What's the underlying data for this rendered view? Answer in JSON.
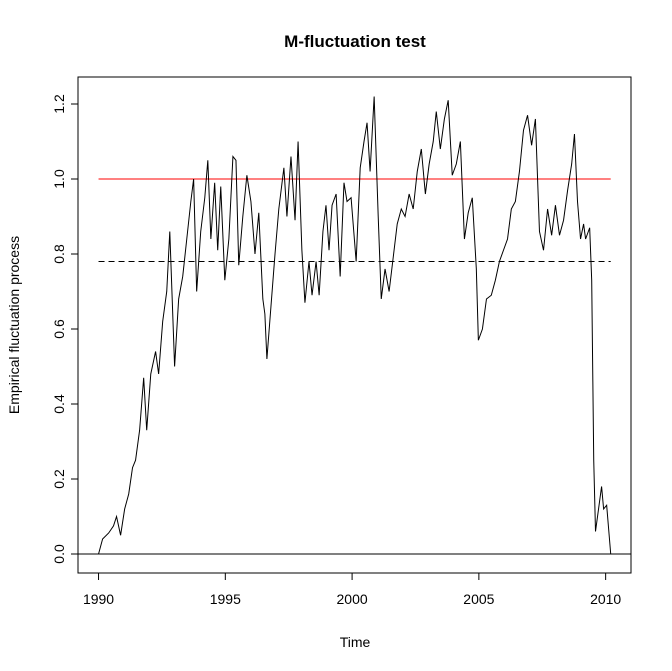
{
  "chart_data": {
    "type": "line",
    "title": "M-fluctuation test",
    "x_label": "Time",
    "y_label": "Empirical fluctuation process",
    "xlim": [
      1989.19,
      2011.0
    ],
    "ylim": [
      -0.0507,
      1.272
    ],
    "xticks": [
      1990,
      1995,
      2000,
      2005,
      2010
    ],
    "yticks": [
      {
        "value": 0,
        "label": "0.0"
      },
      0.2,
      0.4,
      0.6,
      0.8,
      {
        "value": 1,
        "label": "1.0"
      },
      1.2
    ],
    "hlines": [
      {
        "value": 1.0,
        "color": "#ff0000",
        "dash": false,
        "span": "data"
      },
      {
        "value": 0.78,
        "color": "#000000",
        "dash": true,
        "span": "data"
      },
      {
        "value": 0,
        "color": "#000000",
        "dash": false,
        "span": "full"
      }
    ],
    "series": [
      {
        "color": "#000000",
        "x": [
          1990.0,
          1990.16,
          1990.4,
          1990.59,
          1990.71,
          1990.87,
          1991.03,
          1991.19,
          1991.34,
          1991.46,
          1991.62,
          1991.78,
          1991.9,
          1992.06,
          1992.25,
          1992.37,
          1992.53,
          1992.69,
          1992.81,
          1993.0,
          1993.16,
          1993.32,
          1993.48,
          1993.64,
          1993.75,
          1993.87,
          1994.03,
          1994.19,
          1994.31,
          1994.43,
          1994.58,
          1994.7,
          1994.82,
          1994.98,
          1995.14,
          1995.3,
          1995.42,
          1995.53,
          1995.69,
          1995.85,
          1996.01,
          1996.17,
          1996.32,
          1996.48,
          1996.56,
          1996.64,
          1996.8,
          1996.96,
          1997.11,
          1997.31,
          1997.43,
          1997.59,
          1997.75,
          1997.87,
          1998.02,
          1998.14,
          1998.3,
          1998.42,
          1998.58,
          1998.7,
          1998.85,
          1998.97,
          1999.09,
          1999.21,
          1999.37,
          1999.53,
          1999.68,
          1999.8,
          1999.96,
          2000.16,
          2000.32,
          2000.47,
          2000.59,
          2000.71,
          2000.87,
          2001.03,
          2001.15,
          2001.3,
          2001.46,
          2001.62,
          2001.78,
          2001.94,
          2002.09,
          2002.25,
          2002.41,
          2002.57,
          2002.73,
          2002.89,
          2003.04,
          2003.2,
          2003.32,
          2003.48,
          2003.64,
          2003.79,
          2003.95,
          2004.11,
          2004.27,
          2004.43,
          2004.58,
          2004.74,
          2004.9,
          2004.98,
          2005.14,
          2005.3,
          2005.49,
          2005.65,
          2005.81,
          2005.97,
          2006.13,
          2006.28,
          2006.44,
          2006.6,
          2006.76,
          2006.92,
          2007.08,
          2007.23,
          2007.39,
          2007.55,
          2007.71,
          2007.87,
          2008.02,
          2008.18,
          2008.34,
          2008.5,
          2008.66,
          2008.77,
          2008.89,
          2009.01,
          2009.13,
          2009.21,
          2009.37,
          2009.45,
          2009.53,
          2009.6,
          2009.76,
          2009.84,
          2009.92,
          2010.04,
          2010.2
        ],
        "values": [
          0,
          0.04,
          0.056,
          0.075,
          0.1,
          0.05,
          0.12,
          0.16,
          0.23,
          0.25,
          0.33,
          0.47,
          0.33,
          0.48,
          0.54,
          0.48,
          0.62,
          0.7,
          0.86,
          0.5,
          0.68,
          0.74,
          0.84,
          0.94,
          1.0,
          0.7,
          0.86,
          0.95,
          1.05,
          0.84,
          0.99,
          0.81,
          0.98,
          0.73,
          0.84,
          1.06,
          1.05,
          0.77,
          0.9,
          1.01,
          0.94,
          0.8,
          0.91,
          0.68,
          0.64,
          0.52,
          0.66,
          0.8,
          0.92,
          1.03,
          0.9,
          1.06,
          0.89,
          1.1,
          0.81,
          0.67,
          0.78,
          0.69,
          0.78,
          0.69,
          0.86,
          0.93,
          0.81,
          0.93,
          0.96,
          0.74,
          0.99,
          0.94,
          0.95,
          0.78,
          1.03,
          1.1,
          1.15,
          1.02,
          1.22,
          0.9,
          0.68,
          0.76,
          0.7,
          0.79,
          0.88,
          0.92,
          0.9,
          0.96,
          0.92,
          1.02,
          1.08,
          0.96,
          1.04,
          1.1,
          1.18,
          1.08,
          1.16,
          1.21,
          1.01,
          1.04,
          1.1,
          0.84,
          0.91,
          0.95,
          0.76,
          0.57,
          0.6,
          0.68,
          0.69,
          0.73,
          0.78,
          0.81,
          0.84,
          0.92,
          0.94,
          1.02,
          1.13,
          1.17,
          1.09,
          1.16,
          0.86,
          0.81,
          0.92,
          0.85,
          0.93,
          0.85,
          0.89,
          0.97,
          1.04,
          1.12,
          0.94,
          0.84,
          0.88,
          0.84,
          0.87,
          0.73,
          0.25,
          0.06,
          0.14,
          0.18,
          0.12,
          0.13,
          0.0
        ]
      }
    ]
  }
}
